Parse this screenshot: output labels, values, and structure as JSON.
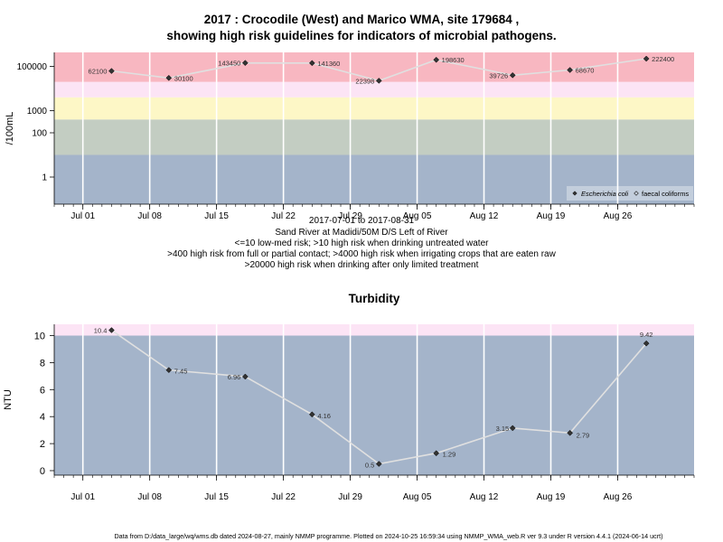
{
  "title_line1": "2017 : Crocodile (West) and Marico WMA, site 179684 ,",
  "title_line2": "showing high risk guidelines for indicators of microbial pathogens.",
  "subtitle_lines": [
    "2017-07-01 to 2017-08-31",
    "Sand River at Madidi/50M D/S Left of River",
    "<=10 low-med risk; >10 high risk when drinking untreated water",
    ">400 high risk from full or partial contact; >4000 high risk when irrigating crops that are eaten raw",
    ">20000 high risk when drinking after only limited treatment"
  ],
  "turbidity_title": "Turbidity",
  "footer": "Data from D:/data_large/wq/wms.db dated 2024-08-27, mainly NMMP programme. Plotted on 2024-10-25 16:59:34 using NMMP_WMA_web.R ver 9.3 under R version 4.4.1 (2024-06-14 ucrt)",
  "colors": {
    "band_low": "#a4b4ca",
    "band_green": "#c3cdc2",
    "band_yellow": "#fdf7c6",
    "band_pink_light": "#fce4f5",
    "band_red": "#f8b7c1",
    "line": "#e0e0e0",
    "point": "#333333",
    "grid": "#ffffff"
  },
  "chart_data": [
    {
      "type": "scatter",
      "title": "",
      "xlabel": "",
      "ylabel": "/100mL",
      "yscale": "log",
      "x_ticks": [
        "Jul 01",
        "Jul 08",
        "Jul 15",
        "Jul 22",
        "Jul 29",
        "Aug 05",
        "Aug 12",
        "Aug 19",
        "Aug 26"
      ],
      "y_ticks": [
        "1",
        "100",
        "1000",
        "100000"
      ],
      "risk_bands": [
        10,
        400,
        4000,
        20000
      ],
      "legend": [
        "Escherichia coli",
        "faecal coliforms"
      ],
      "legend_position": "bottom-right",
      "series": [
        {
          "name": "Escherichia coli",
          "x": [
            "2017-07-04",
            "2017-07-10",
            "2017-07-18",
            "2017-07-25",
            "2017-08-01",
            "2017-08-07",
            "2017-08-15",
            "2017-08-21",
            "2017-08-29"
          ],
          "values": [
            62100,
            30100,
            143450,
            141360,
            22398,
            198630,
            39726,
            68670,
            222400
          ],
          "labels": [
            "62100",
            "30100",
            "143450",
            "141360",
            "22398",
            "198630",
            "39726",
            "68670",
            "222400"
          ]
        }
      ]
    },
    {
      "type": "line",
      "title": "Turbidity",
      "xlabel": "",
      "ylabel": "NTU",
      "ylim": [
        -0.4,
        10.8
      ],
      "x_ticks": [
        "Jul 01",
        "Jul 08",
        "Jul 15",
        "Jul 22",
        "Jul 29",
        "Aug 05",
        "Aug 12",
        "Aug 19",
        "Aug 26"
      ],
      "y_ticks": [
        "0",
        "2",
        "4",
        "6",
        "8",
        "10"
      ],
      "risk_bands": [
        10
      ],
      "series": [
        {
          "x": [
            "2017-07-04",
            "2017-07-10",
            "2017-07-18",
            "2017-07-25",
            "2017-08-01",
            "2017-08-07",
            "2017-08-15",
            "2017-08-21",
            "2017-08-29"
          ],
          "values": [
            10.4,
            7.45,
            6.96,
            4.16,
            0.5,
            1.29,
            3.15,
            2.79,
            9.42
          ],
          "labels": [
            "10.4",
            "7.45",
            "6.96",
            "4.16",
            "0.5",
            "1.29",
            "3.15",
            "2.79",
            "9.42"
          ]
        }
      ]
    }
  ]
}
